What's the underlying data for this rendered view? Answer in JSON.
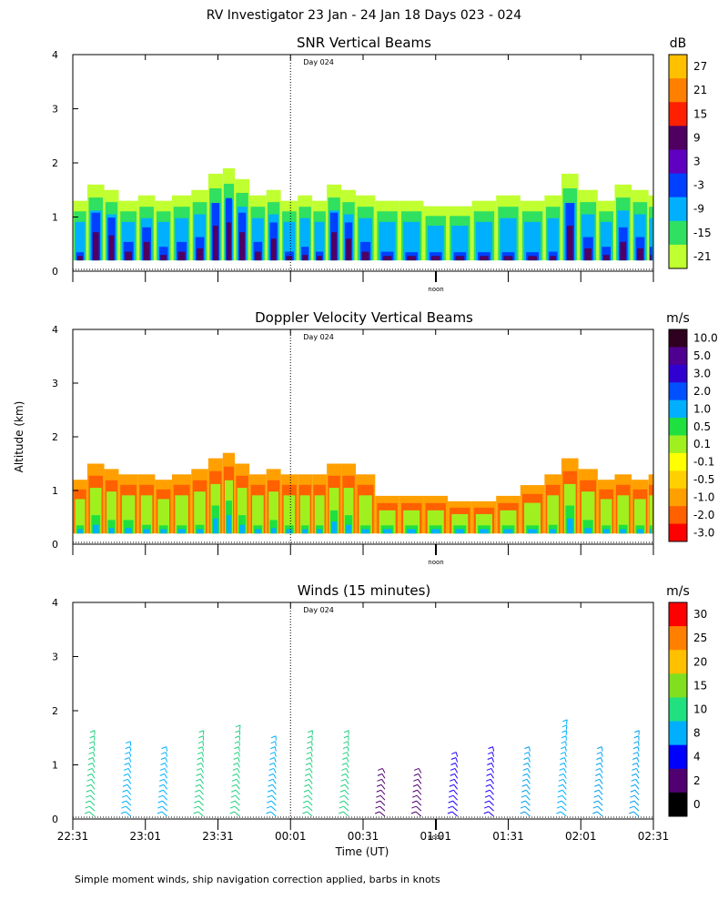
{
  "figure": {
    "title": "RV Investigator  23 Jan - 24 Jan 18 Days 023 - 024",
    "ylabel": "Altitude (km)",
    "xlabel": "Time (UT)",
    "footer": "Simple moment winds, ship navigation correction applied, barbs in knots",
    "day_label": "Day 024",
    "noon_label": "noon",
    "x_ticks": [
      "22:31",
      "23:01",
      "23:31",
      "00:01",
      "00:31",
      "01:01",
      "01:31",
      "02:01",
      "02:31"
    ],
    "y_ticks": [
      "0",
      "1",
      "2",
      "3",
      "4"
    ]
  },
  "chart_data": [
    {
      "type": "heatmap",
      "title": "SNR Vertical Beams",
      "colorbar_unit": "dB",
      "colorbar_labels": [
        "27",
        "21",
        "15",
        "9",
        "3",
        "-3",
        "-9",
        "-15",
        "-21"
      ],
      "colorbar_colors": [
        "#ffc000",
        "#ff8000",
        "#ff2000",
        "#500060",
        "#6000c0",
        "#0040ff",
        "#00b0ff",
        "#30e060",
        "#c0ff30"
      ],
      "ylim": [
        0,
        4
      ],
      "columns": [
        {
          "t": "22:31",
          "top": 1.3,
          "core": 0.3
        },
        {
          "t": "22:37",
          "top": 1.6,
          "core": 1.2
        },
        {
          "t": "22:44",
          "top": 1.5,
          "core": 1.1
        },
        {
          "t": "22:50",
          "top": 1.3,
          "core": 0.6
        },
        {
          "t": "22:58",
          "top": 1.4,
          "core": 0.9
        },
        {
          "t": "23:05",
          "top": 1.3,
          "core": 0.5
        },
        {
          "t": "23:12",
          "top": 1.4,
          "core": 0.6
        },
        {
          "t": "23:20",
          "top": 1.5,
          "core": 0.7
        },
        {
          "t": "23:27",
          "top": 1.8,
          "core": 1.4
        },
        {
          "t": "23:33",
          "top": 1.9,
          "core": 1.5
        },
        {
          "t": "23:38",
          "top": 1.7,
          "core": 1.2
        },
        {
          "t": "23:44",
          "top": 1.4,
          "core": 0.6
        },
        {
          "t": "23:51",
          "top": 1.5,
          "core": 1.0
        },
        {
          "t": "23:57",
          "top": 1.3,
          "core": 0.4
        },
        {
          "t": "00:04",
          "top": 1.4,
          "core": 0.5
        },
        {
          "t": "00:10",
          "top": 1.3,
          "core": 0.4
        },
        {
          "t": "00:16",
          "top": 1.6,
          "core": 1.2
        },
        {
          "t": "00:22",
          "top": 1.5,
          "core": 1.0
        },
        {
          "t": "00:28",
          "top": 1.4,
          "core": 0.6
        },
        {
          "t": "00:36",
          "top": 1.3,
          "core": 0.4
        },
        {
          "t": "00:46",
          "top": 1.3,
          "core": 0.3
        },
        {
          "t": "00:56",
          "top": 1.2,
          "core": 0.3
        },
        {
          "t": "01:06",
          "top": 1.2,
          "core": 0.3
        },
        {
          "t": "01:16",
          "top": 1.3,
          "core": 0.3
        },
        {
          "t": "01:26",
          "top": 1.4,
          "core": 0.3
        },
        {
          "t": "01:36",
          "top": 1.3,
          "core": 0.3
        },
        {
          "t": "01:46",
          "top": 1.4,
          "core": 0.4
        },
        {
          "t": "01:53",
          "top": 1.8,
          "core": 1.4
        },
        {
          "t": "02:00",
          "top": 1.5,
          "core": 0.7
        },
        {
          "t": "02:08",
          "top": 1.3,
          "core": 0.5
        },
        {
          "t": "02:15",
          "top": 1.6,
          "core": 0.9
        },
        {
          "t": "02:22",
          "top": 1.5,
          "core": 0.7
        },
        {
          "t": "02:29",
          "top": 1.4,
          "core": 0.5
        }
      ]
    },
    {
      "type": "heatmap",
      "title": "Doppler Velocity Vertical Beams",
      "colorbar_unit": "m/s",
      "colorbar_labels": [
        "10.0",
        "5.0",
        "3.0",
        "2.0",
        "1.0",
        "0.5",
        "0.1",
        "-0.1",
        "-0.5",
        "-1.0",
        "-2.0",
        "-3.0"
      ],
      "colorbar_colors": [
        "#300020",
        "#500090",
        "#3000d0",
        "#0050ff",
        "#00b0ff",
        "#20e040",
        "#a0f020",
        "#ffff00",
        "#ffd000",
        "#ffa000",
        "#ff6000",
        "#ff0000"
      ],
      "ylim": [
        0,
        4
      ],
      "columns": [
        {
          "t": "22:31",
          "top": 1.2,
          "core": 0.3
        },
        {
          "t": "22:37",
          "top": 1.5,
          "core": 0.6
        },
        {
          "t": "22:44",
          "top": 1.4,
          "core": 0.5
        },
        {
          "t": "22:50",
          "top": 1.3,
          "core": 0.5
        },
        {
          "t": "22:58",
          "top": 1.3,
          "core": 0.4
        },
        {
          "t": "23:05",
          "top": 1.2,
          "core": 0.2
        },
        {
          "t": "23:12",
          "top": 1.3,
          "core": 0.3
        },
        {
          "t": "23:20",
          "top": 1.4,
          "core": 0.4
        },
        {
          "t": "23:27",
          "top": 1.6,
          "core": 0.8
        },
        {
          "t": "23:33",
          "top": 1.7,
          "core": 0.9
        },
        {
          "t": "23:38",
          "top": 1.5,
          "core": 0.6
        },
        {
          "t": "23:44",
          "top": 1.3,
          "core": 0.3
        },
        {
          "t": "23:51",
          "top": 1.4,
          "core": 0.5
        },
        {
          "t": "23:57",
          "top": 1.3,
          "core": 0.3
        },
        {
          "t": "00:04",
          "top": 1.3,
          "core": 0.3
        },
        {
          "t": "00:10",
          "top": 1.3,
          "core": 0.3
        },
        {
          "t": "00:16",
          "top": 1.5,
          "core": 0.7
        },
        {
          "t": "00:22",
          "top": 1.5,
          "core": 0.6
        },
        {
          "t": "00:28",
          "top": 1.3,
          "core": 0.3
        },
        {
          "t": "00:36",
          "top": 0.9,
          "core": 0.1
        },
        {
          "t": "00:46",
          "top": 0.9,
          "core": 0.1
        },
        {
          "t": "00:56",
          "top": 0.9,
          "core": 0.1
        },
        {
          "t": "01:06",
          "top": 0.8,
          "core": 0.1
        },
        {
          "t": "01:16",
          "top": 0.8,
          "core": 0.1
        },
        {
          "t": "01:26",
          "top": 0.9,
          "core": 0.1
        },
        {
          "t": "01:36",
          "top": 1.1,
          "core": 0.3
        },
        {
          "t": "01:46",
          "top": 1.3,
          "core": 0.4
        },
        {
          "t": "01:53",
          "top": 1.6,
          "core": 0.8
        },
        {
          "t": "02:00",
          "top": 1.4,
          "core": 0.5
        },
        {
          "t": "02:08",
          "top": 1.2,
          "core": 0.3
        },
        {
          "t": "02:15",
          "top": 1.3,
          "core": 0.4
        },
        {
          "t": "02:22",
          "top": 1.2,
          "core": 0.3
        },
        {
          "t": "02:29",
          "top": 1.3,
          "core": 0.3
        }
      ]
    },
    {
      "type": "scatter",
      "title": "Winds (15 minutes)",
      "colorbar_unit": "m/s",
      "colorbar_labels": [
        "30",
        "25",
        "20",
        "15",
        "10",
        "8",
        "4",
        "2",
        "0"
      ],
      "colorbar_colors": [
        "#ff0000",
        "#ff8000",
        "#ffc000",
        "#80e020",
        "#20e080",
        "#00b0ff",
        "#0000ff",
        "#500070",
        "#000000"
      ],
      "ylim": [
        0,
        4
      ],
      "profiles": [
        {
          "t": "22:40",
          "top": 1.6,
          "speed": 15
        },
        {
          "t": "22:55",
          "top": 1.4,
          "speed": 14
        },
        {
          "t": "23:10",
          "top": 1.3,
          "speed": 10
        },
        {
          "t": "23:25",
          "top": 1.6,
          "speed": 15
        },
        {
          "t": "23:40",
          "top": 1.75,
          "speed": 15
        },
        {
          "t": "23:55",
          "top": 1.5,
          "speed": 10
        },
        {
          "t": "00:10",
          "top": 1.6,
          "speed": 15
        },
        {
          "t": "00:25",
          "top": 1.6,
          "speed": 15
        },
        {
          "t": "00:40",
          "top": 0.9,
          "speed": 2
        },
        {
          "t": "00:55",
          "top": 0.9,
          "speed": 3
        },
        {
          "t": "01:10",
          "top": 1.2,
          "speed": 4
        },
        {
          "t": "01:25",
          "top": 1.3,
          "speed": 6
        },
        {
          "t": "01:40",
          "top": 1.3,
          "speed": 8
        },
        {
          "t": "01:55",
          "top": 1.8,
          "speed": 10
        },
        {
          "t": "02:10",
          "top": 1.3,
          "speed": 9
        },
        {
          "t": "02:25",
          "top": 1.6,
          "speed": 8
        }
      ]
    }
  ]
}
